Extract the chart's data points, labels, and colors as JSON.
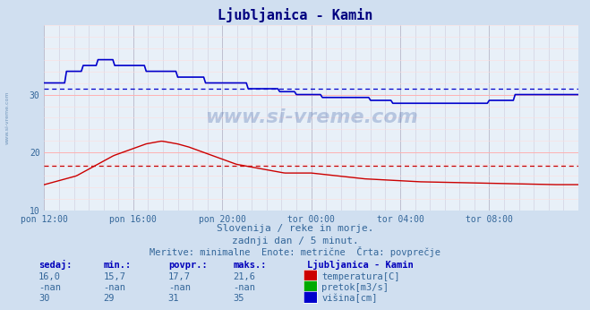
{
  "title": "Ljubljanica - Kamin",
  "title_color": "#000080",
  "bg_color": "#d0dff0",
  "plot_bg_color": "#e8f0f8",
  "grid_color_v": "#ccccdd",
  "grid_color_h_major": "#ffaaaa",
  "grid_color_h_minor": "#ffdddd",
  "xlabel_ticks": [
    "pon 12:00",
    "pon 16:00",
    "pon 20:00",
    "tor 00:00",
    "tor 04:00",
    "tor 08:00"
  ],
  "yticks": [
    10,
    20,
    30
  ],
  "ylim": [
    10,
    42
  ],
  "xlim": [
    0,
    1
  ],
  "temp_avg": 17.7,
  "visina_avg": 31.0,
  "temp_color": "#cc0000",
  "visina_color": "#0000cc",
  "pretok_color": "#00aa00",
  "watermark_color": "#4466aa",
  "subtitle1": "Slovenija / reke in morje.",
  "subtitle2": "zadnji dan / 5 minut.",
  "subtitle3": "Meritve: minimalne  Enote: metrične  Črta: povprečje",
  "col_headers": [
    "sedaj:",
    "min.:",
    "povpr.:",
    "maks.:",
    "Ljubljanica - Kamin"
  ],
  "row_temp": [
    "16,0",
    "15,7",
    "17,7",
    "21,6",
    "temperatura[C]"
  ],
  "row_pretok": [
    "-nan",
    "-nan",
    "-nan",
    "-nan",
    "pretok[m3/s]"
  ],
  "row_visina": [
    "30",
    "29",
    "31",
    "35",
    "višina[cm]"
  ],
  "leg_colors": [
    "#cc0000",
    "#00aa00",
    "#0000cc"
  ]
}
